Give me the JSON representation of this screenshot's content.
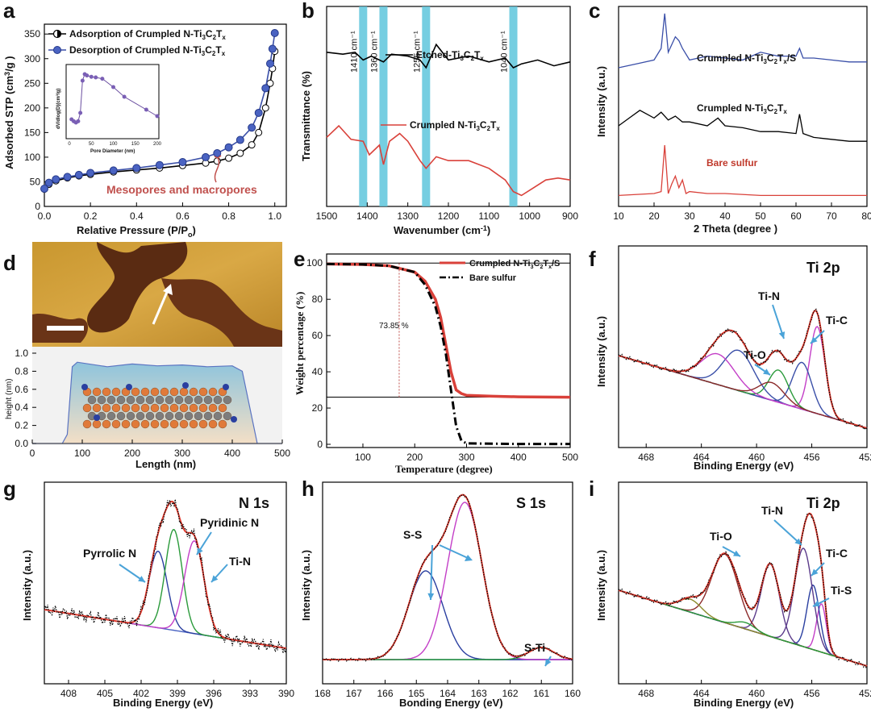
{
  "panels": {
    "a": {
      "letter": "a",
      "xlabel": "Relative Pressure (P/P",
      "xlabel_sub": "o",
      "xlabel_end": ")",
      "ylabel": "Adsorbed STP (cm",
      "ylabel_sup": "3",
      "ylabel_end": "/g )",
      "xticks": [
        "0.0",
        "0.2",
        "0.4",
        "0.6",
        "0.8",
        "1.0"
      ],
      "yticks": [
        "0",
        "50",
        "100",
        "150",
        "200",
        "250",
        "300",
        "350"
      ],
      "legend_ads": "Adsorption of Crumpled  N-Ti",
      "legend_des": "Desorption of Crumpled N-Ti",
      "legend_tail_a": "3",
      "legend_tail_b": "C",
      "legend_tail_c": "2",
      "legend_tail_d": "T",
      "legend_tail_e": "x",
      "annotation": "Mesopores and macropores",
      "inset_xlabel": "Pore Diameter (nm)",
      "inset_ylabel": "dV/dlog(D)(cm³/g)",
      "inset_xticks": [
        "0",
        "50",
        "100",
        "150",
        "200"
      ]
    },
    "b": {
      "letter": "b",
      "xlabel": "Wavenumber (cm",
      "xlabel_sup": "-1",
      "xlabel_end": ")",
      "ylabel": "Transmittance (%)",
      "xticks": [
        "1500",
        "1400",
        "1300",
        "1200",
        "1100",
        "1000",
        "900"
      ],
      "bands": [
        "1410 cm⁻¹",
        "1360 cm⁻¹",
        "1255 cm⁻¹",
        "1040 cm⁻¹"
      ],
      "label_etched": "Etched-Ti",
      "label_crumpled": "Crumpled  N-Ti"
    },
    "c": {
      "letter": "c",
      "xlabel": "2 Theta (degree )",
      "ylabel": "Intensity (a.u.)",
      "xticks": [
        "10",
        "20",
        "30",
        "40",
        "50",
        "60",
        "70",
        "80"
      ],
      "label_top": "Crumpled  N-Ti",
      "label_top_tail": "/S",
      "label_mid": "Crumpled  N-Ti",
      "label_bot": "Bare sulfur"
    },
    "d": {
      "letter": "d",
      "xlabel": "Length (nm)",
      "ylabel": "height (nm)",
      "xticks": [
        "0",
        "100",
        "200",
        "300",
        "400",
        "500"
      ],
      "yticks": [
        "0.0",
        "0.2",
        "0.4",
        "0.6",
        "0.8",
        "1.0"
      ]
    },
    "e": {
      "letter": "e",
      "xlabel": "Temperature (degree)",
      "ylabel": "Weight percentage (%)",
      "xticks": [
        "100",
        "200",
        "300",
        "400",
        "500"
      ],
      "yticks": [
        "0",
        "20",
        "40",
        "60",
        "80",
        "100"
      ],
      "legend_a": "Crumpled  N-Ti",
      "legend_a_tail": "/S",
      "legend_b": "Bare sulfur",
      "annotation": "73.85 %"
    },
    "f": {
      "letter": "f",
      "title": "Ti 2p",
      "xlabel": "Binding  Energy (eV)",
      "ylabel": "Intensity (a.u.)",
      "xticks": [
        "468",
        "464",
        "460",
        "456",
        "452"
      ],
      "peaks": [
        "Ti-N",
        "Ti-C",
        "Ti-O"
      ]
    },
    "g": {
      "letter": "g",
      "title": "N 1s",
      "xlabel": "Binding  Energy (eV)",
      "ylabel": "Intensity (a.u.)",
      "xticks": [
        "408",
        "405",
        "402",
        "399",
        "396",
        "393",
        "390"
      ],
      "peaks": [
        "Pyridinic N",
        "Pyrrolic N",
        "Ti-N"
      ]
    },
    "h": {
      "letter": "h",
      "title": "S 1s",
      "xlabel": "Bonding Energy (eV)",
      "ylabel": "Intensity (a.u.)",
      "xticks": [
        "168",
        "167",
        "166",
        "165",
        "164",
        "163",
        "162",
        "161",
        "160"
      ],
      "peaks": [
        "S-S",
        "S-Ti"
      ]
    },
    "i": {
      "letter": "i",
      "title": "Ti 2p",
      "xlabel": "Binding  Energy (eV)",
      "ylabel": "Intensity (a.u.)",
      "xticks": [
        "468",
        "464",
        "460",
        "456",
        "452"
      ],
      "peaks": [
        "Ti-N",
        "Ti-O",
        "Ti-C",
        "Ti-S"
      ]
    }
  },
  "chart_data": [
    {
      "type": "line",
      "title": "",
      "xlabel": "Relative Pressure (P/Po)",
      "ylabel": "Adsorbed STP (cm3/g )",
      "xlim": [
        0,
        1.05
      ],
      "ylim": [
        0,
        370
      ],
      "series": [
        {
          "name": "Adsorption of Crumpled  N-Ti3C2Tx",
          "x": [
            0.0,
            0.02,
            0.05,
            0.1,
            0.15,
            0.2,
            0.3,
            0.4,
            0.5,
            0.6,
            0.7,
            0.75,
            0.8,
            0.85,
            0.9,
            0.93,
            0.96,
            0.98,
            0.99,
            1.0
          ],
          "y": [
            35,
            45,
            52,
            58,
            62,
            65,
            70,
            74,
            78,
            83,
            88,
            92,
            98,
            108,
            125,
            150,
            200,
            250,
            280,
            315
          ]
        },
        {
          "name": "Desorption of Crumpled N-Ti3C2Tx",
          "x": [
            0.0,
            0.02,
            0.05,
            0.1,
            0.15,
            0.2,
            0.3,
            0.4,
            0.5,
            0.6,
            0.7,
            0.75,
            0.8,
            0.85,
            0.9,
            0.93,
            0.96,
            0.98,
            0.99,
            1.0
          ],
          "y": [
            36,
            48,
            55,
            60,
            64,
            68,
            73,
            78,
            84,
            90,
            100,
            108,
            120,
            135,
            160,
            190,
            240,
            290,
            320,
            352
          ]
        }
      ],
      "inset": {
        "xlabel": "Pore Diameter (nm)",
        "ylabel": "dV/dlog(D)(cm³/g)",
        "xlim": [
          0,
          200
        ],
        "x": [
          5,
          10,
          15,
          20,
          25,
          30,
          35,
          40,
          50,
          60,
          75,
          100,
          125,
          175,
          200
        ],
        "y": [
          0.25,
          0.22,
          0.2,
          0.22,
          0.35,
          0.85,
          0.95,
          0.93,
          0.91,
          0.9,
          0.88,
          0.75,
          0.6,
          0.4,
          0.3
        ]
      }
    },
    {
      "type": "line",
      "title": "",
      "xlabel": "Wavenumber (cm-1)",
      "ylabel": "Transmittance (%)",
      "xlim": [
        1500,
        900
      ],
      "highlight_bands": [
        1410,
        1360,
        1255,
        1040
      ],
      "series": [
        {
          "name": "Etched-Ti3C2Tx",
          "x": [
            1500,
            1460,
            1430,
            1410,
            1390,
            1370,
            1360,
            1340,
            1300,
            1270,
            1255,
            1230,
            1200,
            1150,
            1100,
            1060,
            1040,
            1020,
            980,
            940,
            900
          ],
          "y": [
            0.78,
            0.77,
            0.78,
            0.74,
            0.76,
            0.74,
            0.73,
            0.77,
            0.76,
            0.74,
            0.7,
            0.82,
            0.74,
            0.76,
            0.73,
            0.75,
            0.7,
            0.72,
            0.74,
            0.71,
            0.73
          ]
        },
        {
          "name": "Crumpled  N-Ti3C2Tx",
          "x": [
            1500,
            1470,
            1440,
            1410,
            1395,
            1370,
            1360,
            1345,
            1320,
            1300,
            1270,
            1255,
            1230,
            1200,
            1150,
            1100,
            1060,
            1040,
            1020,
            990,
            960,
            930,
            900
          ],
          "y": [
            0.34,
            0.4,
            0.33,
            0.32,
            0.25,
            0.3,
            0.2,
            0.32,
            0.36,
            0.32,
            0.22,
            0.18,
            0.24,
            0.22,
            0.22,
            0.18,
            0.12,
            0.06,
            0.04,
            0.08,
            0.12,
            0.13,
            0.12
          ]
        }
      ]
    },
    {
      "type": "line",
      "title": "",
      "xlabel": "2 Theta (degree )",
      "ylabel": "Intensity (a.u.)",
      "xlim": [
        10,
        80
      ],
      "series": [
        {
          "name": "Crumpled  N-Ti3C2Tx/S",
          "x": [
            10,
            15,
            20,
            22,
            23,
            24,
            26,
            27,
            28,
            30,
            35,
            40,
            45,
            50,
            55,
            60,
            61,
            62,
            65,
            70,
            75,
            80
          ],
          "y": [
            0.7,
            0.72,
            0.74,
            0.8,
            0.98,
            0.78,
            0.86,
            0.84,
            0.8,
            0.74,
            0.76,
            0.75,
            0.74,
            0.78,
            0.76,
            0.76,
            0.8,
            0.75,
            0.75,
            0.74,
            0.73,
            0.73
          ]
        },
        {
          "name": "Crumpled  N-Ti3C2Tx",
          "x": [
            10,
            13,
            16,
            18,
            20,
            22,
            24,
            26,
            28,
            30,
            35,
            38,
            40,
            45,
            50,
            55,
            60,
            61,
            62,
            65,
            70,
            75,
            80
          ],
          "y": [
            0.4,
            0.44,
            0.48,
            0.46,
            0.44,
            0.47,
            0.43,
            0.45,
            0.42,
            0.42,
            0.4,
            0.44,
            0.4,
            0.39,
            0.37,
            0.37,
            0.36,
            0.46,
            0.36,
            0.34,
            0.33,
            0.32,
            0.32
          ]
        },
        {
          "name": "Bare sulfur",
          "x": [
            10,
            20,
            22,
            23,
            24,
            25,
            26,
            27,
            28,
            29,
            30,
            35,
            40,
            50,
            60,
            70,
            80
          ],
          "y": [
            0.04,
            0.05,
            0.06,
            0.3,
            0.05,
            0.1,
            0.14,
            0.08,
            0.12,
            0.05,
            0.06,
            0.05,
            0.05,
            0.04,
            0.04,
            0.04,
            0.04
          ]
        }
      ]
    },
    {
      "type": "area",
      "title": "",
      "xlabel": "Length (nm)",
      "ylabel": "height (nm)",
      "xlim": [
        0,
        500
      ],
      "ylim": [
        0,
        1.0
      ],
      "x": [
        0,
        60,
        70,
        80,
        90,
        150,
        200,
        250,
        300,
        350,
        400,
        420,
        450,
        500
      ],
      "y": [
        0.0,
        0.0,
        0.1,
        0.85,
        0.9,
        0.85,
        0.88,
        0.86,
        0.87,
        0.85,
        0.86,
        0.8,
        0.0,
        0.0
      ]
    },
    {
      "type": "line",
      "title": "",
      "xlabel": "Temperature (degree)",
      "ylabel": "Weight percentage (%)",
      "xlim": [
        30,
        500
      ],
      "ylim": [
        0,
        100
      ],
      "series": [
        {
          "name": "Crumpled  N-Ti3C2Tx/S",
          "x": [
            30,
            100,
            150,
            200,
            220,
            240,
            250,
            260,
            270,
            280,
            290,
            300,
            350,
            400,
            500
          ],
          "y": [
            99.5,
            99.2,
            98.5,
            95,
            90,
            80,
            70,
            55,
            40,
            30,
            28,
            27,
            26.5,
            26.2,
            26.0
          ]
        },
        {
          "name": "Bare sulfur",
          "x": [
            30,
            100,
            150,
            200,
            220,
            240,
            250,
            260,
            270,
            280,
            290,
            300,
            400,
            500
          ],
          "y": [
            99.5,
            99.2,
            98.5,
            95,
            88,
            76,
            65,
            50,
            30,
            10,
            2,
            0.5,
            0.2,
            0.2
          ]
        }
      ],
      "annotation_x": 170,
      "annotation_text": "73.85 %",
      "reference_lines": [
        100,
        26
      ]
    },
    {
      "type": "line",
      "title": "Ti 2p",
      "xlabel": "Binding  Energy (eV)",
      "ylabel": "Intensity (a.u.)",
      "xlim": [
        470,
        452
      ],
      "peaks": [
        {
          "name": "Ti-C",
          "center": 455.5
        },
        {
          "name": "Ti-N",
          "center": 456.7
        },
        {
          "name": "Ti-O",
          "center": 458.5
        }
      ]
    },
    {
      "type": "line",
      "title": "N 1s",
      "xlabel": "Binding  Energy (eV)",
      "ylabel": "Intensity (a.u.)",
      "xlim": [
        410,
        390
      ],
      "peaks": [
        {
          "name": "Pyrrolic N",
          "center": 400.3
        },
        {
          "name": "Pyridinic N",
          "center": 398.9
        },
        {
          "name": "Ti-N",
          "center": 397.4
        }
      ]
    },
    {
      "type": "line",
      "title": "S 1s",
      "xlabel": "Bonding Energy (eV)",
      "ylabel": "Intensity (a.u.)",
      "xlim": [
        168,
        160
      ],
      "peaks": [
        {
          "name": "S-S",
          "center": 164.7
        },
        {
          "name": "S-S",
          "center": 163.5
        },
        {
          "name": "S-Ti",
          "center": 161.0
        }
      ]
    },
    {
      "type": "line",
      "title": "Ti 2p",
      "xlabel": "Binding  Energy (eV)",
      "ylabel": "Intensity (a.u.)",
      "xlim": [
        470,
        452
      ],
      "peaks": [
        {
          "name": "Ti-S",
          "center": 455.2
        },
        {
          "name": "Ti-C",
          "center": 455.7
        },
        {
          "name": "Ti-N",
          "center": 456.5
        },
        {
          "name": "Ti-O",
          "center": 459.0
        }
      ]
    }
  ]
}
